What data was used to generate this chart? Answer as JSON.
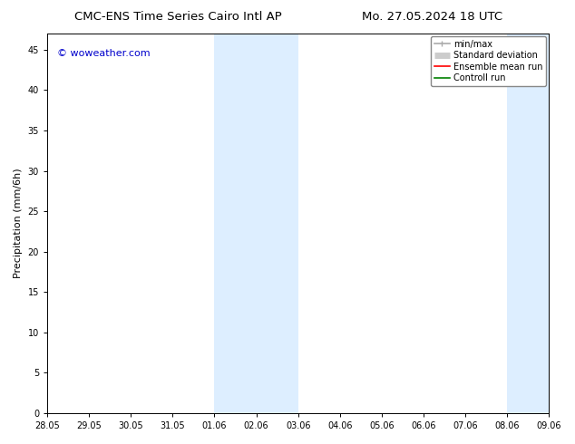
{
  "title_left": "CMC-ENS Time Series Cairo Intl AP",
  "title_right": "Mo. 27.05.2024 18 UTC",
  "ylabel": "Precipitation (mm/6h)",
  "watermark": "© woweather.com",
  "ylim": [
    0,
    47
  ],
  "yticks": [
    0,
    5,
    10,
    15,
    20,
    25,
    30,
    35,
    40,
    45
  ],
  "xtick_labels": [
    "28.05",
    "29.05",
    "30.05",
    "31.05",
    "01.06",
    "02.06",
    "03.06",
    "04.06",
    "05.06",
    "06.06",
    "07.06",
    "08.06",
    "09.06"
  ],
  "shaded_regions": [
    {
      "xstart": 4,
      "xend": 6
    },
    {
      "xstart": 11,
      "xend": 12
    }
  ],
  "shaded_color": "#ddeeff",
  "background_color": "#ffffff",
  "legend_entries": [
    {
      "label": "min/max",
      "color": "#aaaaaa",
      "lw": 1.2
    },
    {
      "label": "Standard deviation",
      "color": "#cccccc",
      "lw": 5
    },
    {
      "label": "Ensemble mean run",
      "color": "#ff0000",
      "lw": 1.2
    },
    {
      "label": "Controll run",
      "color": "#008000",
      "lw": 1.2
    }
  ],
  "title_fontsize": 9.5,
  "tick_fontsize": 7,
  "ylabel_fontsize": 8,
  "legend_fontsize": 7,
  "watermark_color": "#0000cc",
  "watermark_fontsize": 8
}
